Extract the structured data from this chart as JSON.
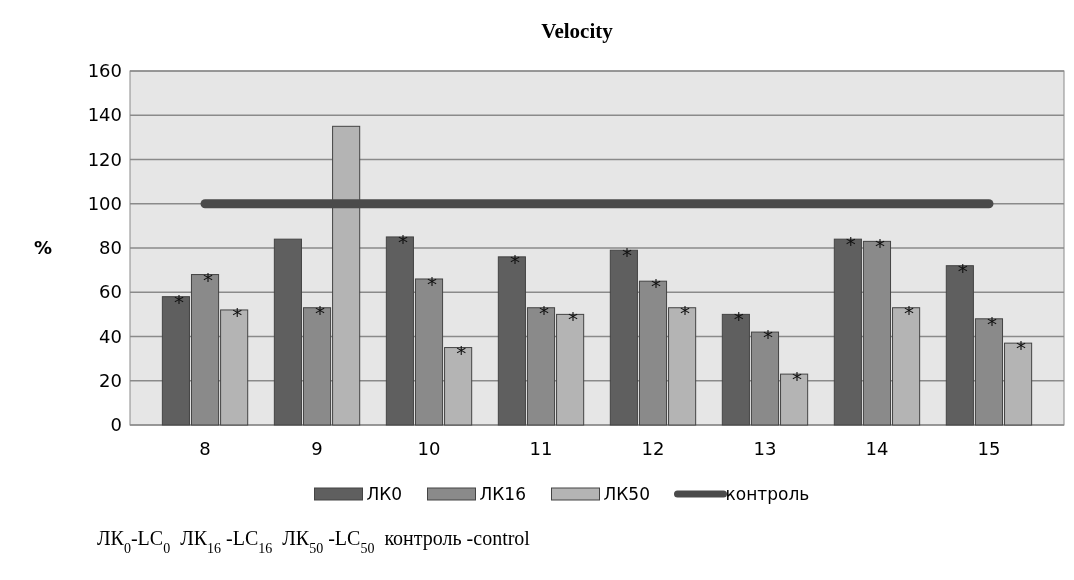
{
  "chart_data": {
    "type": "bar",
    "title": "Velocity",
    "ylabel": "%",
    "categories": [
      "8",
      "9",
      "10",
      "11",
      "12",
      "13",
      "14",
      "15"
    ],
    "series": [
      {
        "name": "ЛК0",
        "color": "#5f5f5f",
        "values": [
          58,
          84,
          85,
          76,
          79,
          50,
          84,
          72
        ],
        "value_labels": [
          "*",
          null,
          "*",
          "*",
          "*",
          "*",
          "*",
          "*"
        ]
      },
      {
        "name": "ЛК16",
        "color": "#8a8a8a",
        "values": [
          68,
          53,
          66,
          53,
          65,
          42,
          83,
          48
        ],
        "value_labels": [
          "*",
          "*",
          "*",
          "*",
          "*",
          "*",
          "*",
          "*"
        ]
      },
      {
        "name": "ЛК50",
        "color": "#b4b4b4",
        "values": [
          52,
          135,
          35,
          50,
          53,
          23,
          53,
          37
        ],
        "value_labels": [
          "*",
          null,
          "*",
          "*",
          "*",
          "*",
          "*",
          "*"
        ]
      },
      {
        "name": "контроль",
        "type": "line",
        "color": "#4a4a4a",
        "values": [
          100,
          100,
          100,
          100,
          100,
          100,
          100,
          100
        ]
      }
    ],
    "ylim": [
      0,
      160
    ],
    "yticks": [
      0,
      20,
      40,
      60,
      80,
      100,
      120,
      140,
      160
    ],
    "grid": "y",
    "legend": "bottom",
    "annotations": [
      "ЛК$_{0}$-LC$_{0}$  ЛК$_{16}$ -LC$_{16}$  ЛК$_{50}$ -LC$_{50}$  контроль -control"
    ]
  }
}
